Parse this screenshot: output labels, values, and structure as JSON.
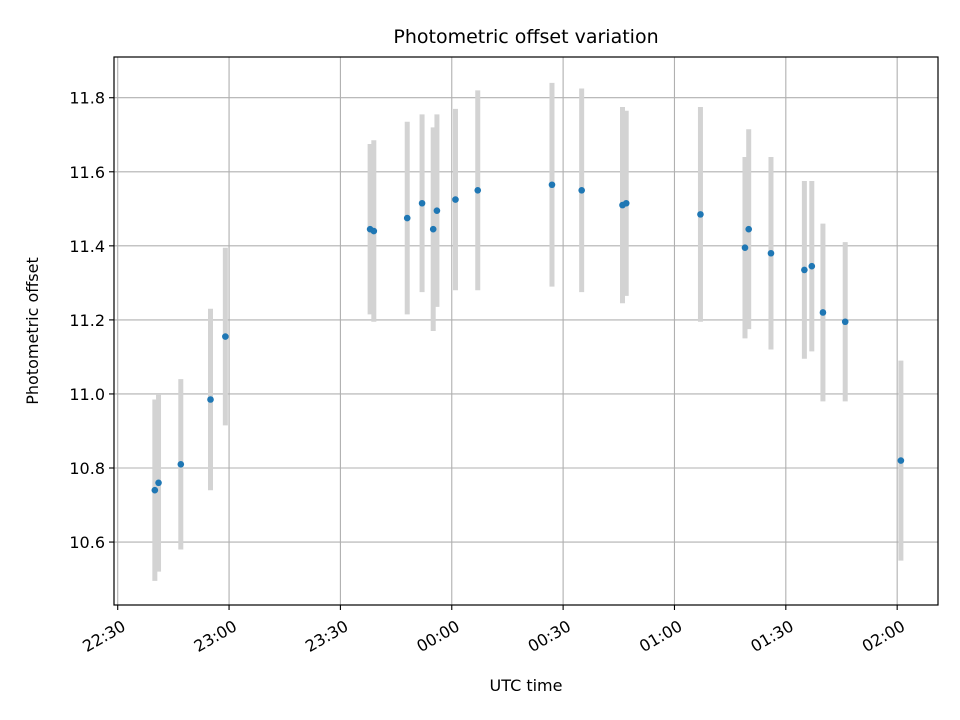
{
  "chart_data": {
    "type": "scatter",
    "title": "Photometric offset variation",
    "xlabel": "UTC time",
    "ylabel": "Photometric offset",
    "x_unit": "UTC time (HH:MM)",
    "xlim": [
      "22:29",
      "02:11"
    ],
    "ylim": [
      10.43,
      11.91
    ],
    "x_ticks": [
      "22:30",
      "23:00",
      "23:30",
      "00:00",
      "00:30",
      "01:00",
      "01:30",
      "02:00"
    ],
    "y_ticks": [
      10.6,
      10.8,
      11.0,
      11.2,
      11.4,
      11.6,
      11.8
    ],
    "grid": true,
    "point_color": "#1f77b4",
    "errorbar_color": "#d3d3d3",
    "points": [
      {
        "t": "22:40",
        "y": 10.74,
        "err": 0.245
      },
      {
        "t": "22:41",
        "y": 10.76,
        "err": 0.24
      },
      {
        "t": "22:47",
        "y": 10.81,
        "err": 0.23
      },
      {
        "t": "22:55",
        "y": 10.985,
        "err": 0.245
      },
      {
        "t": "22:59",
        "y": 11.155,
        "err": 0.24
      },
      {
        "t": "23:38",
        "y": 11.445,
        "err": 0.23
      },
      {
        "t": "23:39",
        "y": 11.44,
        "err": 0.245
      },
      {
        "t": "23:48",
        "y": 11.475,
        "err": 0.26
      },
      {
        "t": "23:52",
        "y": 11.515,
        "err": 0.24
      },
      {
        "t": "23:55",
        "y": 11.445,
        "err": 0.275
      },
      {
        "t": "23:56",
        "y": 11.495,
        "err": 0.26
      },
      {
        "t": "00:01",
        "y": 11.525,
        "err": 0.245
      },
      {
        "t": "00:07",
        "y": 11.55,
        "err": 0.27
      },
      {
        "t": "00:27",
        "y": 11.565,
        "err": 0.275
      },
      {
        "t": "00:35",
        "y": 11.55,
        "err": 0.275
      },
      {
        "t": "00:46",
        "y": 11.51,
        "err": 0.265
      },
      {
        "t": "00:47",
        "y": 11.515,
        "err": 0.25
      },
      {
        "t": "01:07",
        "y": 11.485,
        "err": 0.29
      },
      {
        "t": "01:19",
        "y": 11.395,
        "err": 0.245
      },
      {
        "t": "01:20",
        "y": 11.445,
        "err": 0.27
      },
      {
        "t": "01:26",
        "y": 11.38,
        "err": 0.26
      },
      {
        "t": "01:35",
        "y": 11.335,
        "err": 0.24
      },
      {
        "t": "01:37",
        "y": 11.345,
        "err": 0.23
      },
      {
        "t": "01:40",
        "y": 11.22,
        "err": 0.24
      },
      {
        "t": "01:46",
        "y": 11.195,
        "err": 0.215
      },
      {
        "t": "02:01",
        "y": 10.82,
        "err": 0.27
      }
    ]
  }
}
